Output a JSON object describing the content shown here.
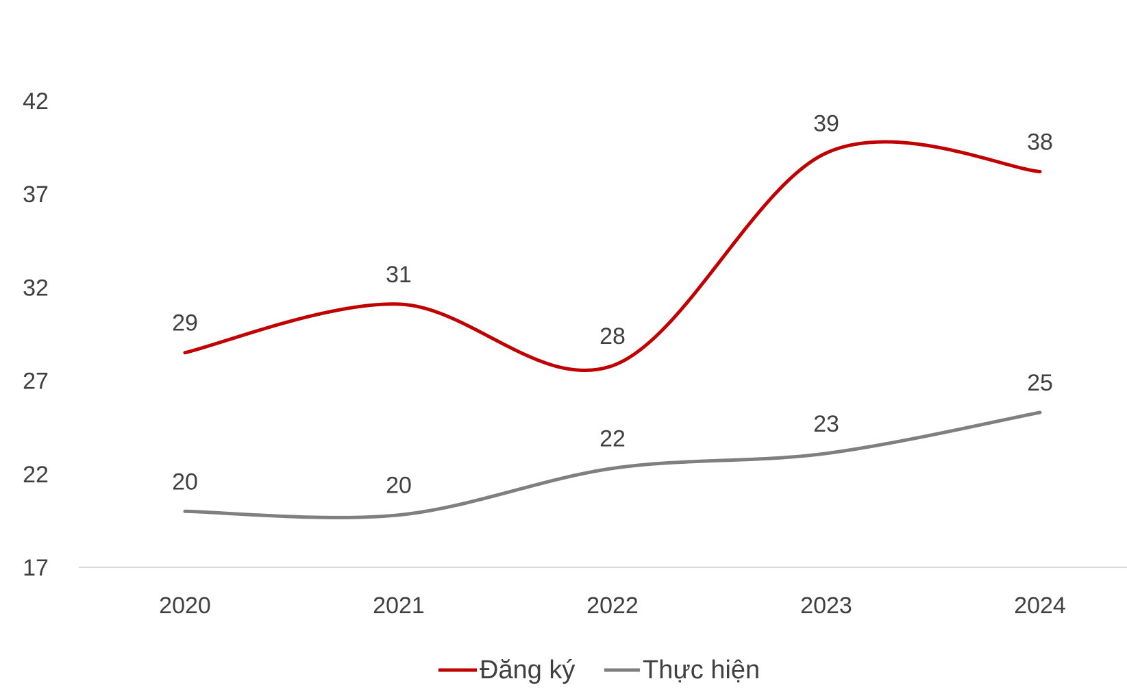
{
  "chart_data": {
    "type": "line",
    "categories": [
      "2020",
      "2021",
      "2022",
      "2023",
      "2024"
    ],
    "series": [
      {
        "name": "Đăng ký",
        "color": "#C00000",
        "values": [
          28.5,
          31.1,
          27.8,
          39.2,
          38.2
        ],
        "labels": [
          "29",
          "31",
          "28",
          "39",
          "38"
        ]
      },
      {
        "name": "Thực hiện",
        "color": "#7F7F7F",
        "values": [
          20.0,
          19.8,
          22.3,
          23.1,
          25.3
        ],
        "labels": [
          "20",
          "20",
          "22",
          "23",
          "25"
        ]
      }
    ],
    "yticks": [
      "17",
      "22",
      "27",
      "32",
      "37",
      "42"
    ],
    "ylim": [
      17,
      42
    ],
    "smooth": true,
    "grid": false,
    "legend": "bottom-center",
    "baseline_color": "#D9D9D9"
  }
}
